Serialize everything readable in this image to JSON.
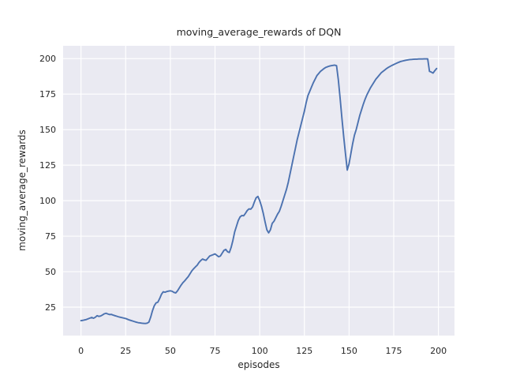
{
  "chart_data": {
    "type": "line",
    "title": "moving_average_rewards of DQN",
    "xlabel": "episodes",
    "ylabel": "moving_average_rewards",
    "x_ticks": [
      0,
      25,
      50,
      75,
      100,
      125,
      150,
      175,
      200
    ],
    "y_ticks": [
      25,
      50,
      75,
      100,
      125,
      150,
      175,
      200
    ],
    "xlim": [
      -10,
      209
    ],
    "ylim": [
      5,
      209
    ],
    "grid": true,
    "legend": false,
    "colors": {
      "line": "#4C72B0",
      "plot_background": "#EAEAF2",
      "grid": "#FFFFFF",
      "figure_background": "#FFFFFF",
      "text": "#262626"
    },
    "series": [
      {
        "name": "moving_average_rewards of DQN",
        "x_start": 0,
        "x_step": 1,
        "values": [
          15.5,
          15.7,
          16.0,
          16.3,
          16.8,
          17.3,
          17.8,
          17.2,
          17.9,
          19.0,
          18.5,
          18.8,
          19.5,
          20.3,
          20.7,
          20.2,
          19.8,
          19.9,
          19.4,
          19.0,
          18.6,
          18.2,
          17.9,
          17.6,
          17.3,
          17.0,
          16.5,
          16.0,
          15.6,
          15.2,
          14.8,
          14.4,
          14.1,
          13.9,
          13.7,
          13.6,
          13.5,
          13.7,
          14.5,
          18.0,
          22.5,
          26.0,
          28.0,
          28.5,
          31.0,
          34.0,
          35.8,
          35.5,
          36.0,
          36.3,
          36.5,
          36.2,
          35.4,
          35.0,
          36.5,
          38.5,
          40.5,
          42.2,
          43.5,
          45.0,
          46.5,
          48.5,
          50.5,
          52.0,
          53.3,
          54.5,
          56.4,
          57.8,
          58.9,
          58.3,
          58.0,
          59.5,
          61.0,
          61.5,
          62.0,
          62.5,
          61.5,
          60.5,
          61.0,
          63.0,
          65.0,
          65.7,
          64.0,
          63.5,
          67.0,
          72.0,
          78.0,
          82.0,
          86.0,
          88.5,
          89.5,
          89.3,
          91.0,
          93.0,
          94.2,
          94.0,
          95.5,
          99.0,
          102.0,
          103.0,
          100.0,
          96.0,
          91.0,
          85.0,
          79.5,
          77.3,
          79.5,
          84.0,
          85.5,
          88.0,
          90.5,
          92.5,
          96.0,
          100.0,
          104.0,
          108.0,
          113.0,
          119.0,
          125.0,
          131.0,
          137.0,
          143.0,
          148.0,
          153.0,
          158.0,
          163.0,
          169.0,
          174.0,
          177.0,
          180.0,
          183.0,
          185.5,
          188.0,
          189.5,
          191.0,
          192.0,
          193.0,
          193.8,
          194.3,
          194.7,
          195.0,
          195.2,
          195.4,
          195.0,
          185.0,
          172.0,
          158.0,
          145.0,
          133.0,
          121.5,
          126.0,
          133.0,
          140.0,
          146.0,
          150.0,
          155.0,
          160.0,
          164.0,
          168.0,
          171.5,
          174.5,
          177.0,
          179.5,
          181.5,
          183.5,
          185.5,
          187.0,
          188.5,
          190.0,
          191.0,
          192.0,
          193.0,
          193.8,
          194.5,
          195.2,
          195.8,
          196.4,
          197.0,
          197.5,
          198.0,
          198.3,
          198.6,
          198.9,
          199.1,
          199.3,
          199.4,
          199.5,
          199.6,
          199.6,
          199.7,
          199.7,
          199.7,
          199.8,
          199.8,
          199.8,
          191.0,
          190.5,
          189.8,
          191.5,
          193.0
        ]
      }
    ]
  }
}
